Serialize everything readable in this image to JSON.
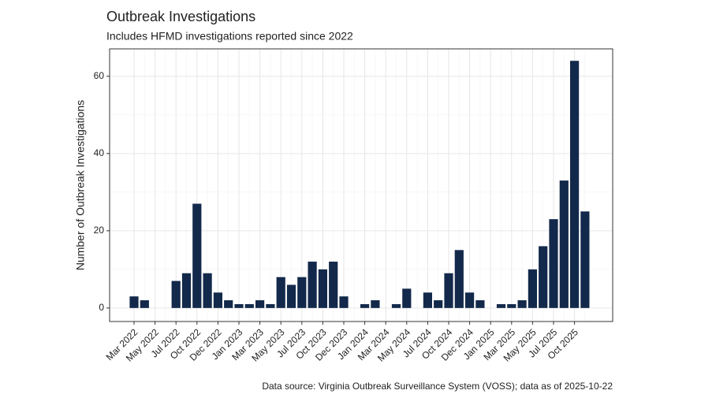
{
  "chart_data": {
    "type": "bar",
    "title": "Outbreak Investigations",
    "subtitle": "Includes HFMD investigations reported since 2022",
    "y_label": "Number of Outbreak Investigations",
    "caption": "Data source: Virginia Outbreak Surveillance System (VOSS); data as of 2025-10-22",
    "categories": [
      "Mar 2022",
      null,
      "May 2022",
      null,
      "Jul 2022",
      null,
      "Oct 2022",
      null,
      "Dec 2022",
      null,
      "Jan 2023",
      null,
      "Mar 2023",
      null,
      "May 2023",
      null,
      "Jul 2023",
      null,
      "Oct 2023",
      null,
      "Dec 2023",
      null,
      "Jan 2024",
      null,
      "Mar 2024",
      null,
      "May 2024",
      null,
      "Jul 2024",
      null,
      "Oct 2024",
      null,
      "Dec 2024",
      null,
      "Jan 2025",
      null,
      "Mar 2025",
      null,
      "May 2025",
      null,
      "Jul 2025",
      null,
      "Oct 2025",
      null
    ],
    "values": [
      3,
      2,
      0,
      0,
      7,
      9,
      27,
      9,
      4,
      2,
      1,
      1,
      2,
      1,
      8,
      6,
      8,
      12,
      10,
      12,
      3,
      0,
      1,
      2,
      0,
      1,
      5,
      0,
      4,
      2,
      9,
      15,
      4,
      2,
      0,
      1,
      1,
      2,
      10,
      16,
      23,
      33,
      64,
      25
    ],
    "color": "#13294b",
    "ylim": [
      -3.5,
      67.1
    ],
    "yticks": [
      0,
      20,
      40,
      60
    ],
    "grid": true
  }
}
